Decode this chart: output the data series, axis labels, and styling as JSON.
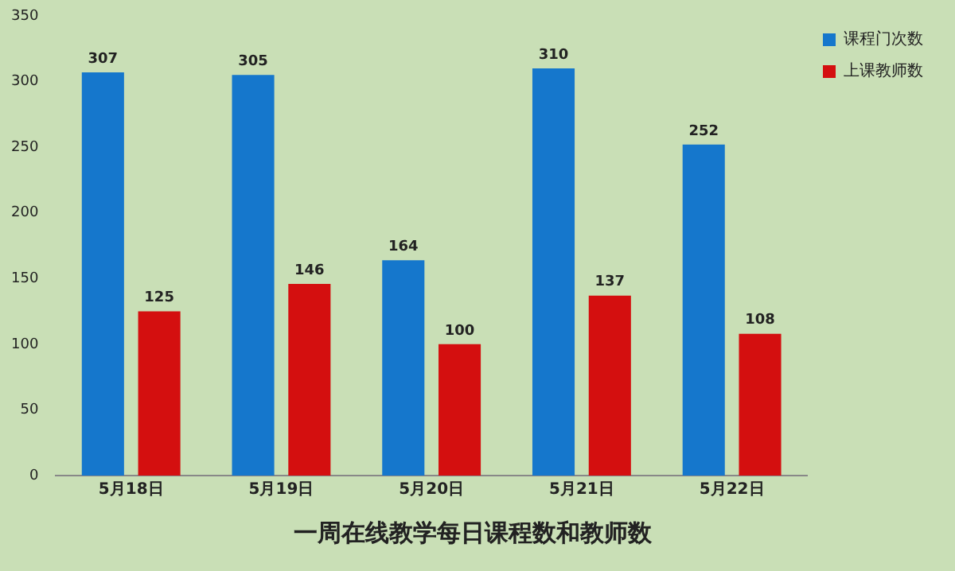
{
  "chart_data": {
    "type": "bar",
    "title": "一周在线教学每日课程数和教师数",
    "categories": [
      "5月18日",
      "5月19日",
      "5月20日",
      "5月21日",
      "5月22日"
    ],
    "series": [
      {
        "name": "课程门次数",
        "color": "#1577cc",
        "values": [
          307,
          305,
          164,
          310,
          252
        ]
      },
      {
        "name": "上课教师数",
        "color": "#d40f0f",
        "values": [
          125,
          146,
          100,
          137,
          108
        ]
      }
    ],
    "ylim": [
      0,
      350
    ],
    "yticks": [
      0,
      50,
      100,
      150,
      200,
      250,
      300,
      350
    ],
    "grid": false,
    "legend": "top right",
    "data_labels": true
  }
}
